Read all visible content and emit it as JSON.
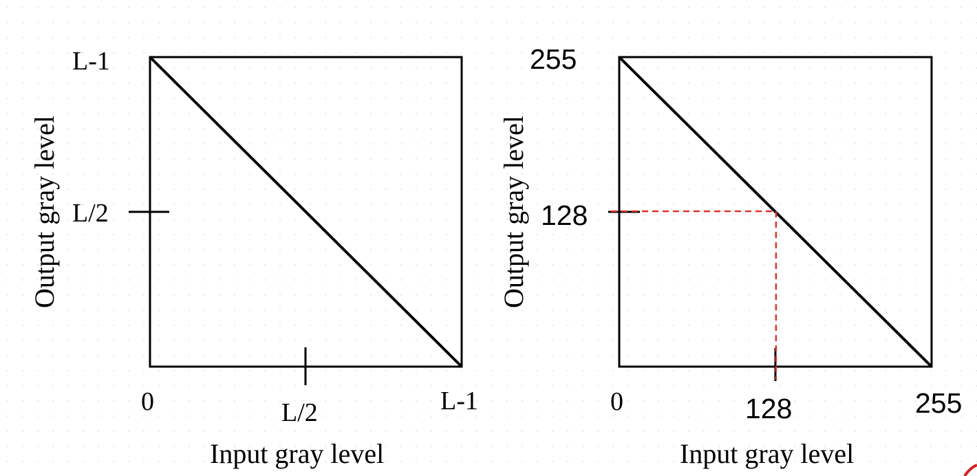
{
  "charts": [
    {
      "panel": "left",
      "ylabel": "Output gray level",
      "xlabel": "Input gray level",
      "y_ticks": [
        "L-1",
        "L/2"
      ],
      "x_ticks": [
        "0",
        "L/2",
        "L-1"
      ]
    },
    {
      "panel": "right",
      "ylabel": "Output gray level",
      "xlabel": "Input gray level",
      "y_ticks": [
        "255",
        "128"
      ],
      "x_ticks": [
        "0",
        "128",
        "255"
      ]
    }
  ],
  "chart_data": [
    {
      "type": "line",
      "x": [
        "0",
        "L-1"
      ],
      "y": [
        "L-1",
        "0"
      ],
      "xlabel": "Input gray level",
      "ylabel": "Output gray level",
      "xticks": [
        "0",
        "L/2",
        "L-1"
      ],
      "yticks": [
        "L/2",
        "L-1"
      ],
      "grid": false
    },
    {
      "type": "line",
      "x": [
        0,
        255
      ],
      "y": [
        255,
        0
      ],
      "xlim": [
        0,
        255
      ],
      "ylim": [
        0,
        255
      ],
      "xlabel": "Input gray level",
      "ylabel": "Output gray level",
      "xticks": [
        0,
        128,
        255
      ],
      "yticks": [
        128,
        255
      ],
      "highlight": {
        "x": 128,
        "y": 128,
        "color": "#e0302a",
        "style": "dashed"
      },
      "grid": false
    }
  ],
  "colors": {
    "line": "#000000",
    "highlight": "#e0302a"
  }
}
